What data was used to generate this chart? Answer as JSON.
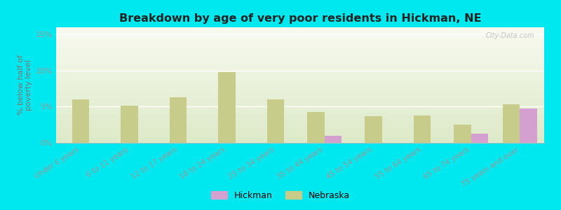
{
  "title": "Breakdown by age of very poor residents in Hickman, NE",
  "ylabel": "% below half of\npoverty level",
  "categories": [
    "Under 6 years",
    "6 to 11 years",
    "12 to 17 years",
    "18 to 24 years",
    "25 to 34 years",
    "35 to 44 years",
    "45 to 54 years",
    "55 to 64 years",
    "65 to 74 years",
    "75 years and over"
  ],
  "hickman_values": [
    0,
    0,
    0,
    0,
    0,
    1.0,
    0,
    0,
    1.3,
    4.8
  ],
  "nebraska_values": [
    6.0,
    5.1,
    6.3,
    9.8,
    6.0,
    4.3,
    3.7,
    3.8,
    2.5,
    5.3
  ],
  "hickman_color": "#d4a0d0",
  "nebraska_color": "#c8cc8a",
  "background_outer": "#00e8ef",
  "grad_top": "#ddeac8",
  "grad_bottom": "#f8faf0",
  "title_color": "#222222",
  "axis_label_color": "#777777",
  "tick_label_color": "#999999",
  "ylim": [
    0,
    16
  ],
  "yticks": [
    0,
    5,
    10,
    15
  ],
  "ytick_labels": [
    "0%",
    "5%",
    "10%",
    "15%"
  ],
  "bar_width": 0.35,
  "legend_hickman": "Hickman",
  "legend_nebraska": "Nebraska",
  "watermark": "City-Data.com"
}
